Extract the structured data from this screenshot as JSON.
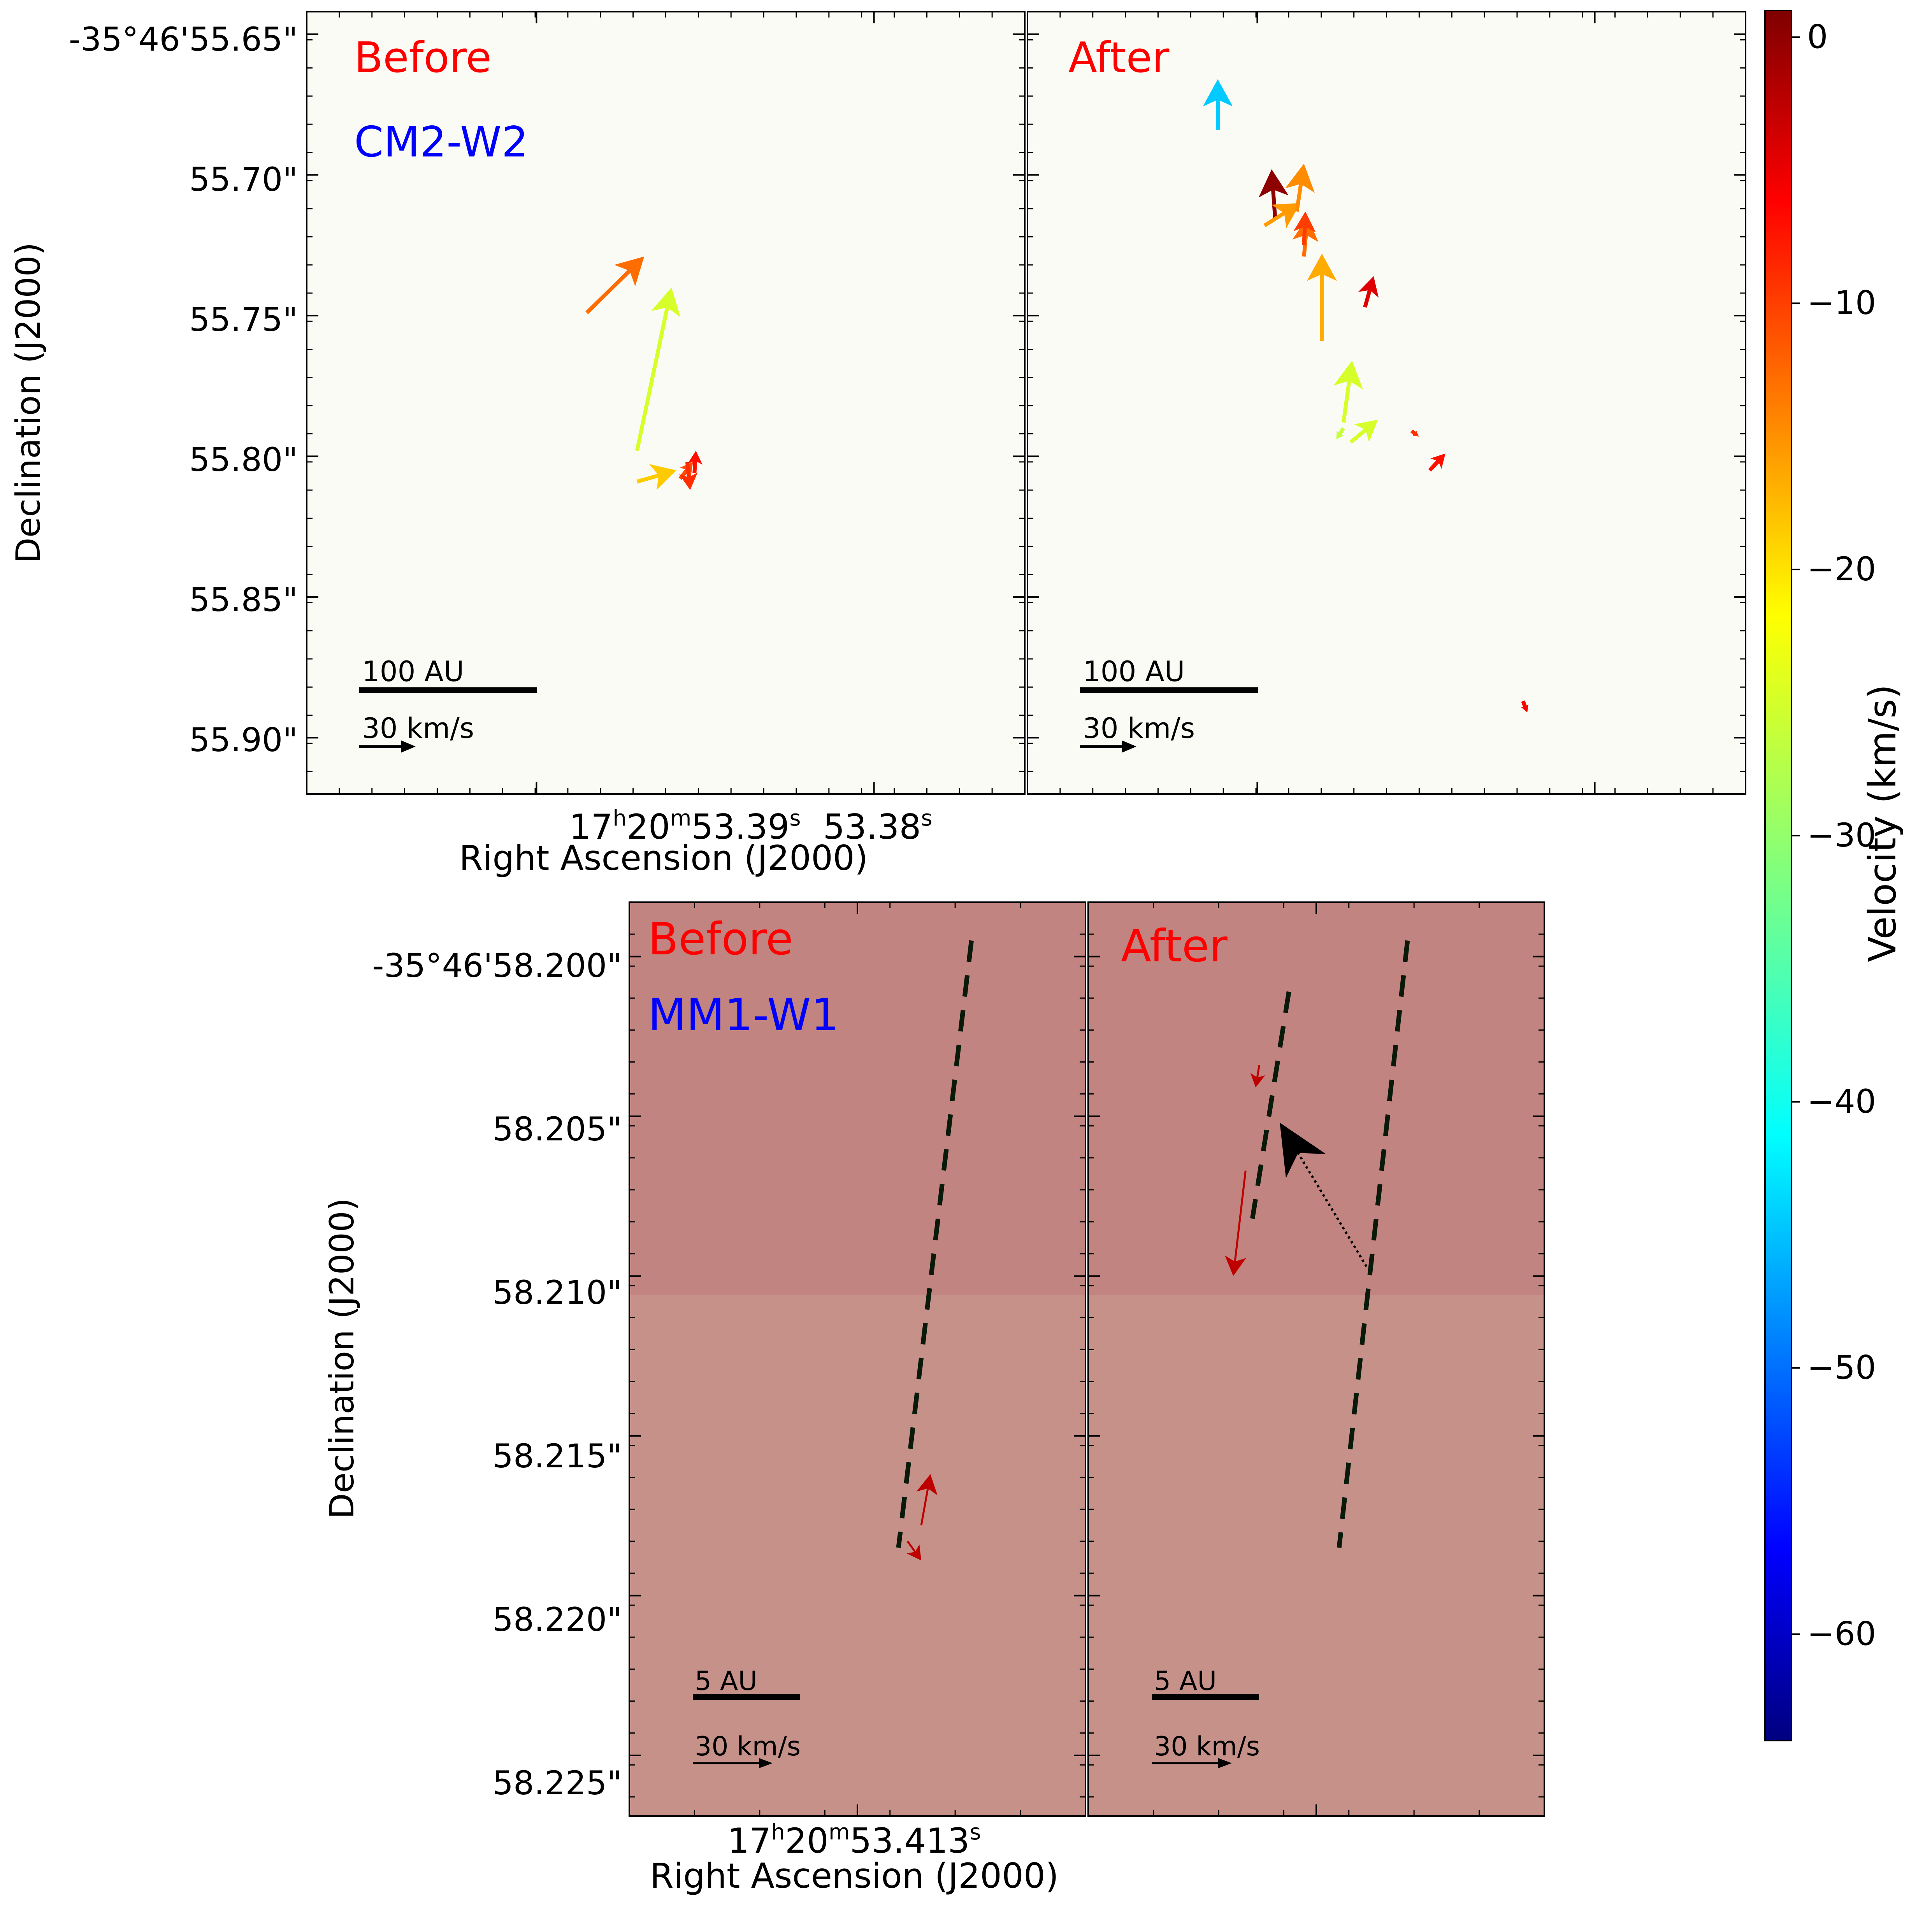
{
  "figure": {
    "colorbar": {
      "label": "Velocity (km/s)",
      "vmin": -64,
      "vmax": 1,
      "ticks": [
        0,
        -10,
        -20,
        -30,
        -40,
        -50,
        -60
      ],
      "tick_labels": [
        "0",
        "−10",
        "−20",
        "−30",
        "−40",
        "−50",
        "−60"
      ],
      "colormap": "jet"
    }
  },
  "chart_data": [
    {
      "type": "vector-map",
      "panel": "top-left",
      "label": "Before",
      "label_color": "#ff0000",
      "source": "CM2-W2",
      "source_color": "#0000ff",
      "background": "#fbfbf6",
      "scale_bar": "100 AU",
      "velocity_key": "30 km/s",
      "xlabel": "Right Ascension (J2000)",
      "ylabel": "Declination (J2000)",
      "ylim": [
        55.92,
        55.642
      ],
      "y_ticks": [
        55.65,
        55.7,
        55.75,
        55.8,
        55.85,
        55.9
      ],
      "y_tick_labels": [
        "-35°46'55.65\"",
        "55.70\"",
        "55.75\"",
        "55.80\"",
        "55.85\"",
        "55.90\""
      ],
      "x_tick_labels": [
        {
          "base": "17",
          "sup1": "h",
          "mid": "20",
          "sup2": "m",
          "tail": "53.39",
          "sup3": "s"
        },
        {
          "base": "",
          "sup1": "",
          "mid": "",
          "sup2": "",
          "tail": "53.38",
          "sup3": "s"
        }
      ],
      "arrows": [
        {
          "x": 0.39,
          "y": 55.749,
          "dx": 0.08,
          "dy": -0.02,
          "v": -14
        },
        {
          "x": 0.46,
          "y": 55.798,
          "dx": 0.048,
          "dy": -0.058,
          "v": -26
        },
        {
          "x": 0.46,
          "y": 55.809,
          "dx": 0.055,
          "dy": -0.004,
          "v": -20
        },
        {
          "x": 0.52,
          "y": 55.808,
          "dx": 0.018,
          "dy": -0.006,
          "v": -12
        },
        {
          "x": 0.53,
          "y": 55.802,
          "dx": 0.004,
          "dy": 0.01,
          "v": -10
        },
        {
          "x": 0.54,
          "y": 55.806,
          "dx": 0.002,
          "dy": -0.008,
          "v": -8
        }
      ]
    },
    {
      "type": "vector-map",
      "panel": "top-right",
      "label": "After",
      "label_color": "#ff0000",
      "source": "",
      "background": "#fbfbf6",
      "scale_bar": "100 AU",
      "velocity_key": "30 km/s",
      "ylim": [
        55.92,
        55.642
      ],
      "arrows": [
        {
          "x": 0.265,
          "y": 55.684,
          "dx": 0.0,
          "dy": -0.018,
          "v": -43
        },
        {
          "x": 0.345,
          "y": 55.716,
          "dx": -0.005,
          "dy": -0.018,
          "v": 0
        },
        {
          "x": 0.33,
          "y": 55.718,
          "dx": 0.05,
          "dy": -0.008,
          "v": -17
        },
        {
          "x": 0.375,
          "y": 55.713,
          "dx": 0.01,
          "dy": -0.017,
          "v": -16
        },
        {
          "x": 0.385,
          "y": 55.729,
          "dx": 0.005,
          "dy": -0.014,
          "v": -14
        },
        {
          "x": 0.385,
          "y": 55.725,
          "dx": 0.002,
          "dy": -0.012,
          "v": -11
        },
        {
          "x": 0.41,
          "y": 55.759,
          "dx": 0.0,
          "dy": -0.031,
          "v": -18
        },
        {
          "x": 0.47,
          "y": 55.747,
          "dx": 0.012,
          "dy": -0.011,
          "v": -5
        },
        {
          "x": 0.44,
          "y": 55.788,
          "dx": 0.012,
          "dy": -0.022,
          "v": -26
        },
        {
          "x": 0.44,
          "y": 55.79,
          "dx": -0.01,
          "dy": 0.004,
          "v": -27
        },
        {
          "x": 0.45,
          "y": 55.795,
          "dx": 0.038,
          "dy": -0.008,
          "v": -26
        },
        {
          "x": 0.535,
          "y": 55.791,
          "dx": 0.01,
          "dy": 0.002,
          "v": -10
        },
        {
          "x": 0.56,
          "y": 55.805,
          "dx": 0.022,
          "dy": -0.006,
          "v": -8
        },
        {
          "x": 0.69,
          "y": 55.887,
          "dx": 0.006,
          "dy": 0.004,
          "v": -7
        }
      ]
    },
    {
      "type": "vector-map",
      "panel": "bottom-left",
      "label": "Before",
      "label_color": "#ff0000",
      "source": "MM1-W1",
      "source_color": "#0000ff",
      "background_top": "#c28480",
      "background_bottom": "#c59189",
      "background_split_y": 58.21,
      "scale_bar": "5 AU",
      "velocity_key": "30 km/s",
      "xlabel": "Right Ascension (J2000)",
      "ylabel": "Declination (J2000)",
      "ylim": [
        58.2269,
        58.1983
      ],
      "y_ticks": [
        58.2,
        58.205,
        58.21,
        58.215,
        58.22,
        58.225
      ],
      "y_tick_labels": [
        "-35°46'58.200\"",
        "58.205\"",
        "58.210\"",
        "58.215\"",
        "58.220\"",
        "58.225\""
      ],
      "x_tick_labels": [
        {
          "base": "17",
          "sup1": "h",
          "mid": "20",
          "sup2": "m",
          "tail": "53.413",
          "sup3": "s"
        }
      ],
      "dashed_lines": [
        {
          "x1": 0.75,
          "y1": 58.1995,
          "x2": 0.59,
          "y2": 58.2185
        }
      ],
      "arrows": [
        {
          "x": 0.64,
          "y": 58.2178,
          "dx": 0.02,
          "dy": -0.0016,
          "v": -3
        },
        {
          "x": 0.61,
          "y": 58.2183,
          "dx": 0.03,
          "dy": 0.0006,
          "v": -3
        }
      ]
    },
    {
      "type": "vector-map",
      "panel": "bottom-right",
      "label": "After",
      "label_color": "#ff0000",
      "source": "",
      "background_top": "#c28480",
      "background_bottom": "#c59189",
      "background_split_y": 58.21,
      "scale_bar": "5 AU",
      "velocity_key": "30 km/s",
      "ylim": [
        58.2269,
        58.1983
      ],
      "dashed_lines": [
        {
          "x1": 0.44,
          "y1": 58.2011,
          "x2": 0.36,
          "y2": 58.2082
        },
        {
          "x1": 0.7,
          "y1": 58.1995,
          "x2": 0.55,
          "y2": 58.2185
        }
      ],
      "dotted_arrow": {
        "x1": 0.61,
        "y1": 58.2097,
        "x2": 0.42,
        "y2": 58.2052
      },
      "arrows": [
        {
          "x": 0.375,
          "y": 58.2034,
          "dx": -0.008,
          "dy": 0.0007,
          "v": -3
        },
        {
          "x": 0.345,
          "y": 58.2067,
          "dx": -0.027,
          "dy": 0.0033,
          "v": -3
        }
      ]
    }
  ]
}
